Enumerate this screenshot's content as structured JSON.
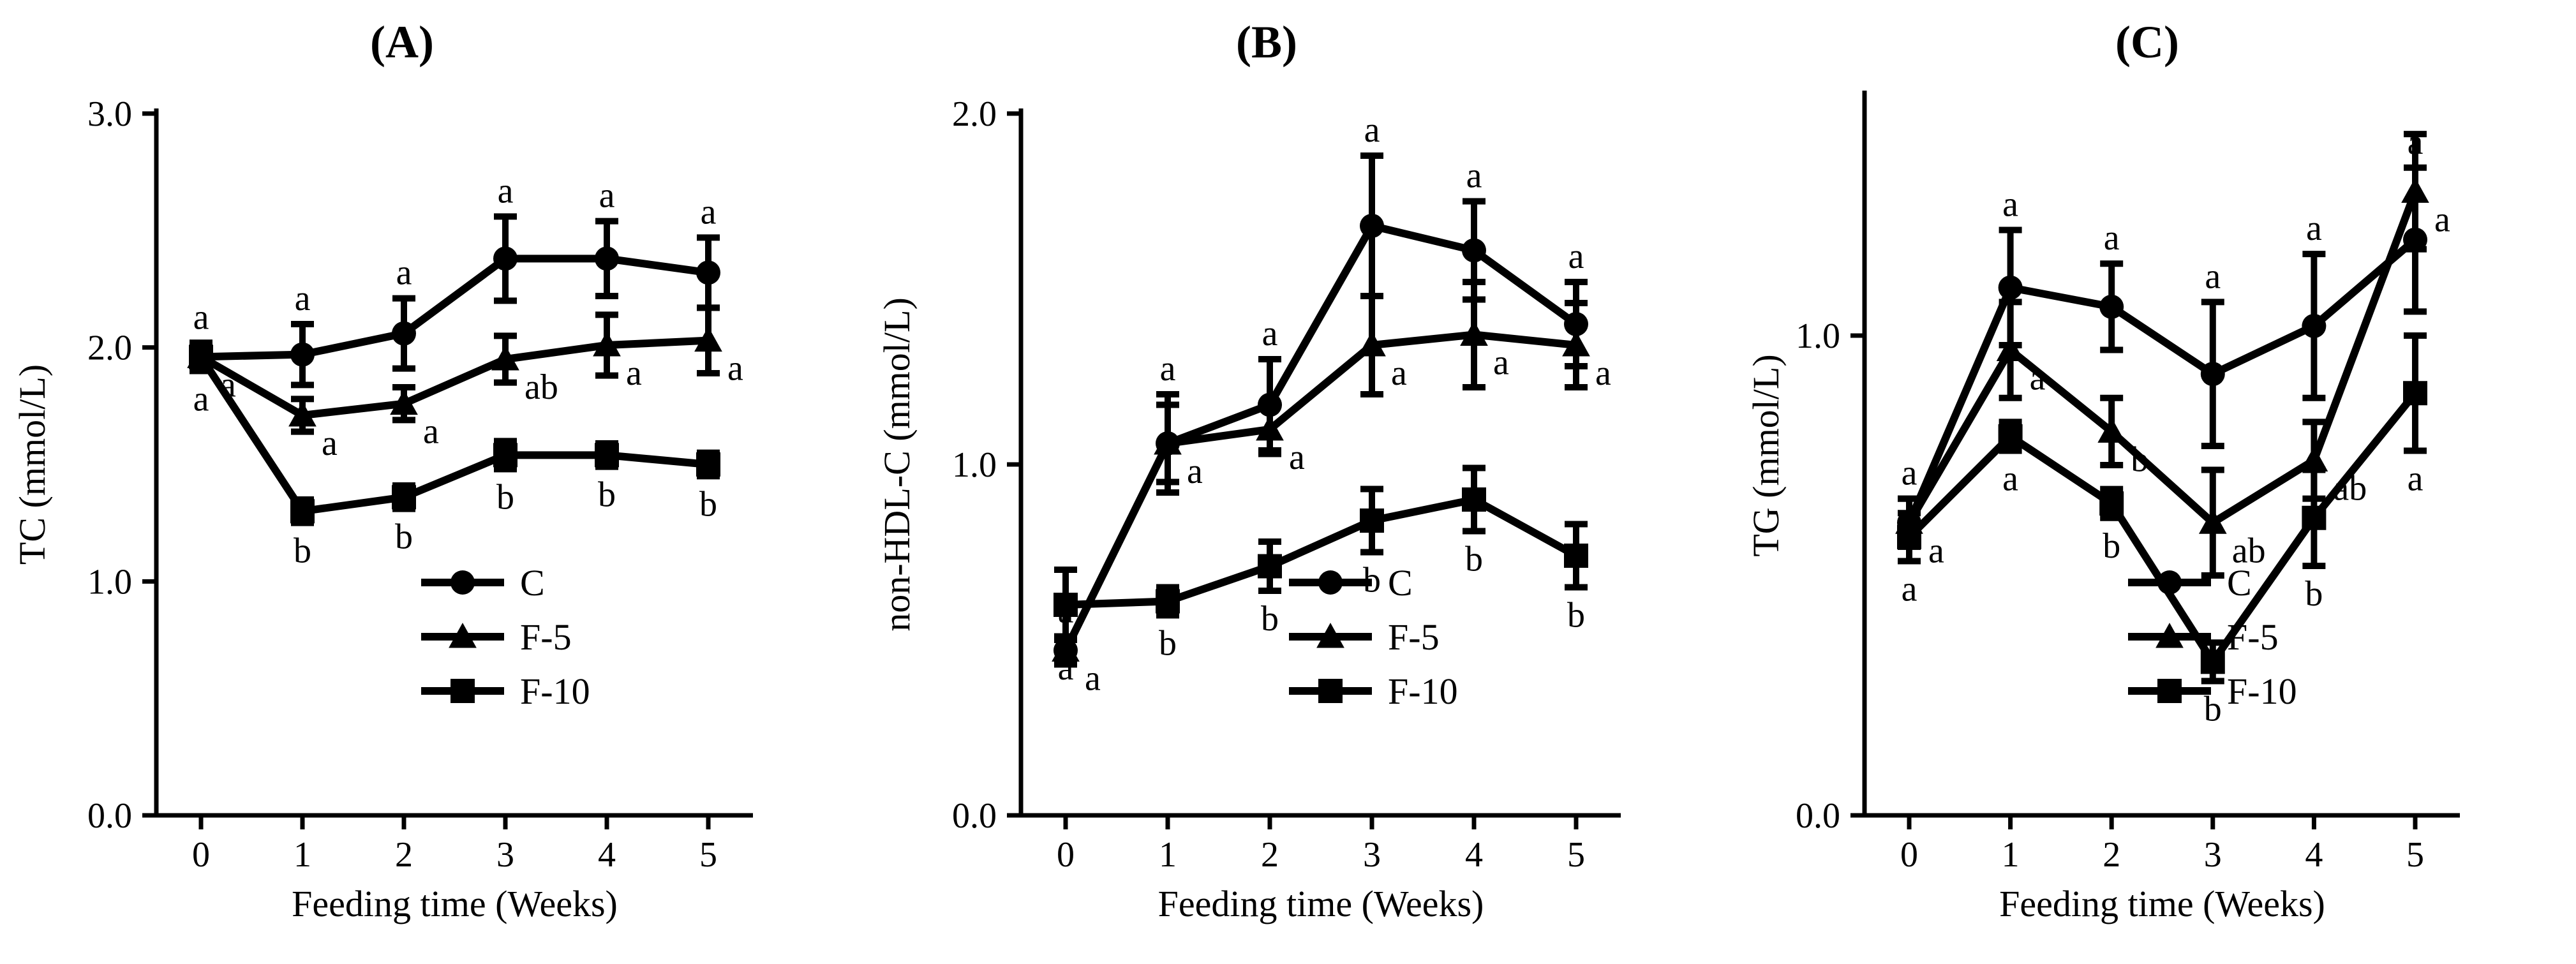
{
  "figure": {
    "background": "#ffffff",
    "ink": "#000000"
  },
  "chart_data": [
    {
      "type": "line",
      "title": "(A)",
      "xlabel": "Feeding time (Weeks)",
      "ylabel": "TC (mmol/L)",
      "x": [
        0,
        1,
        2,
        3,
        4,
        5
      ],
      "xticks": [
        "0",
        "1",
        "2",
        "3",
        "4",
        "5"
      ],
      "ylim": [
        0,
        3
      ],
      "yticks": [
        "0.0",
        "1.0",
        "2.0",
        "3.0"
      ],
      "ytick_values": [
        0,
        1,
        2,
        3
      ],
      "legend": {
        "position": "bottom-right",
        "entries": [
          "C",
          "F-5",
          "F-10"
        ]
      },
      "series": [
        {
          "name": "C",
          "marker": "circle",
          "values": [
            1.96,
            1.97,
            2.06,
            2.38,
            2.38,
            2.32
          ],
          "errors": [
            0.06,
            0.13,
            0.15,
            0.18,
            0.16,
            0.15
          ],
          "labels": [
            "a",
            "a",
            "a",
            "a",
            "a",
            "a"
          ]
        },
        {
          "name": "F-5",
          "marker": "triangle",
          "values": [
            1.96,
            1.71,
            1.76,
            1.95,
            2.01,
            2.03
          ],
          "errors": [
            0.06,
            0.07,
            0.07,
            0.1,
            0.13,
            0.14
          ],
          "labels": [
            "a",
            "a",
            "a",
            "ab",
            "a",
            "a"
          ]
        },
        {
          "name": "F-10",
          "marker": "square",
          "values": [
            1.96,
            1.3,
            1.36,
            1.54,
            1.54,
            1.5
          ],
          "errors": [
            0.06,
            0.05,
            0.05,
            0.06,
            0.05,
            0.05
          ],
          "labels": [
            "a",
            "b",
            "b",
            "b",
            "b",
            "b"
          ]
        }
      ]
    },
    {
      "type": "line",
      "title": "(B)",
      "xlabel": "Feeding time (Weeks)",
      "ylabel": "non-HDL-C (mmol/L)",
      "x": [
        0,
        1,
        2,
        3,
        4,
        5
      ],
      "xticks": [
        "0",
        "1",
        "2",
        "3",
        "4",
        "5"
      ],
      "ylim": [
        0,
        2
      ],
      "yticks": [
        "0.0",
        "1.0",
        "2.0"
      ],
      "ytick_values": [
        0,
        1,
        2
      ],
      "legend": {
        "position": "bottom-right",
        "entries": [
          "C",
          "F-5",
          "F-10"
        ]
      },
      "series": [
        {
          "name": "C",
          "marker": "circle",
          "values": [
            0.47,
            1.06,
            1.17,
            1.68,
            1.61,
            1.4
          ],
          "errors": [
            0.04,
            0.14,
            0.13,
            0.2,
            0.14,
            0.12
          ],
          "labels": [
            "a",
            "a",
            "a",
            "a",
            "a",
            "a"
          ]
        },
        {
          "name": "F-5",
          "marker": "triangle",
          "values": [
            0.47,
            1.06,
            1.1,
            1.34,
            1.37,
            1.34
          ],
          "errors": [
            0.04,
            0.11,
            0.07,
            0.14,
            0.15,
            0.12
          ],
          "labels": [
            "a",
            "a",
            "a",
            "a",
            "a",
            "a"
          ]
        },
        {
          "name": "F-10",
          "marker": "square",
          "values": [
            0.6,
            0.61,
            0.71,
            0.84,
            0.9,
            0.74
          ],
          "errors": [
            0.1,
            0.04,
            0.07,
            0.09,
            0.09,
            0.09
          ],
          "labels": [
            "a",
            "b",
            "b",
            "b",
            "b",
            "b"
          ]
        }
      ]
    },
    {
      "type": "line",
      "title": "(C)",
      "xlabel": "Feeding time (Weeks)",
      "ylabel": "TG  (mmol/L)",
      "x": [
        0,
        1,
        2,
        3,
        4,
        5
      ],
      "xticks": [
        "0",
        "1",
        "2",
        "3",
        "4",
        "5"
      ],
      "ylim": [
        0,
        1.5
      ],
      "yticks": [
        "0.0",
        "1.0"
      ],
      "ytick_values": [
        0,
        1
      ],
      "legend": {
        "position": "bottom-right",
        "entries": [
          "C",
          "F-5",
          "F-10"
        ]
      },
      "series": [
        {
          "name": "C",
          "marker": "circle",
          "values": [
            0.61,
            1.1,
            1.06,
            0.92,
            1.02,
            1.2
          ],
          "errors": [
            0.05,
            0.12,
            0.09,
            0.15,
            0.15,
            0.15
          ],
          "labels": [
            "a",
            "a",
            "a",
            "a",
            "a",
            "a"
          ]
        },
        {
          "name": "F-5",
          "marker": "triangle",
          "values": [
            0.61,
            0.97,
            0.8,
            0.61,
            0.74,
            1.3
          ],
          "errors": [
            0.05,
            0.1,
            0.07,
            0.11,
            0.08,
            0.12
          ],
          "labels": [
            "a",
            "a",
            "b",
            "ab",
            "ab",
            "a"
          ]
        },
        {
          "name": "F-10",
          "marker": "square",
          "values": [
            0.58,
            0.79,
            0.65,
            0.32,
            0.62,
            0.88
          ],
          "errors": [
            0.05,
            0.03,
            0.03,
            0.04,
            0.1,
            0.12
          ],
          "labels": [
            "a",
            "a",
            "b",
            "b",
            "b",
            "a"
          ]
        }
      ]
    }
  ]
}
